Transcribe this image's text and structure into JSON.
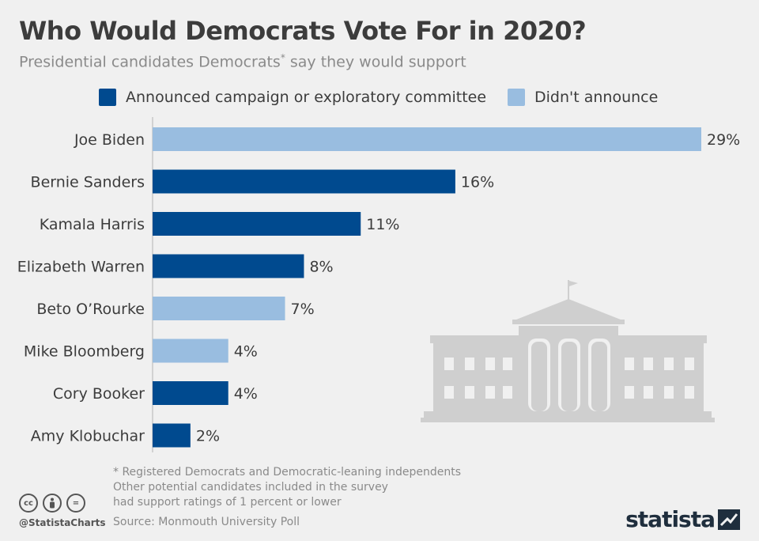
{
  "header": {
    "title": "Who Would Democrats Vote For in 2020?",
    "subtitle": "Presidential candidates Democrats",
    "subtitle_mark": "*",
    "subtitle_rest": " say they would support"
  },
  "legend": [
    {
      "label": "Announced campaign or exploratory committee",
      "color": "#004a8f"
    },
    {
      "label": "Didn't announce",
      "color": "#99bde0"
    }
  ],
  "chart_data": {
    "type": "bar",
    "orientation": "horizontal",
    "categories": [
      "Joe Biden",
      "Bernie Sanders",
      "Kamala Harris",
      "Elizabeth Warren",
      "Beto O’Rourke",
      "Mike Bloomberg",
      "Cory Booker",
      "Amy Klobuchar"
    ],
    "values": [
      29,
      16,
      11,
      8,
      7,
      4,
      4,
      2
    ],
    "value_labels": [
      "29%",
      "16%",
      "11%",
      "8%",
      "7%",
      "4%",
      "4%",
      "2%"
    ],
    "status": [
      "didnt_announce",
      "announced",
      "announced",
      "announced",
      "didnt_announce",
      "didnt_announce",
      "announced",
      "announced"
    ],
    "unit": "%",
    "xlim": [
      0,
      29
    ],
    "grid": false
  },
  "footnote": [
    "* Registered Democrats and Democratic-leaning independents",
    "Other potential candidates included in the survey",
    "had support ratings of 1 percent or lower"
  ],
  "source": "Source: Monmouth University Poll",
  "social": {
    "handle": "@StatistaCharts",
    "cc_icons": [
      "cc",
      "by",
      "="
    ]
  },
  "brand": {
    "name": "statista"
  }
}
